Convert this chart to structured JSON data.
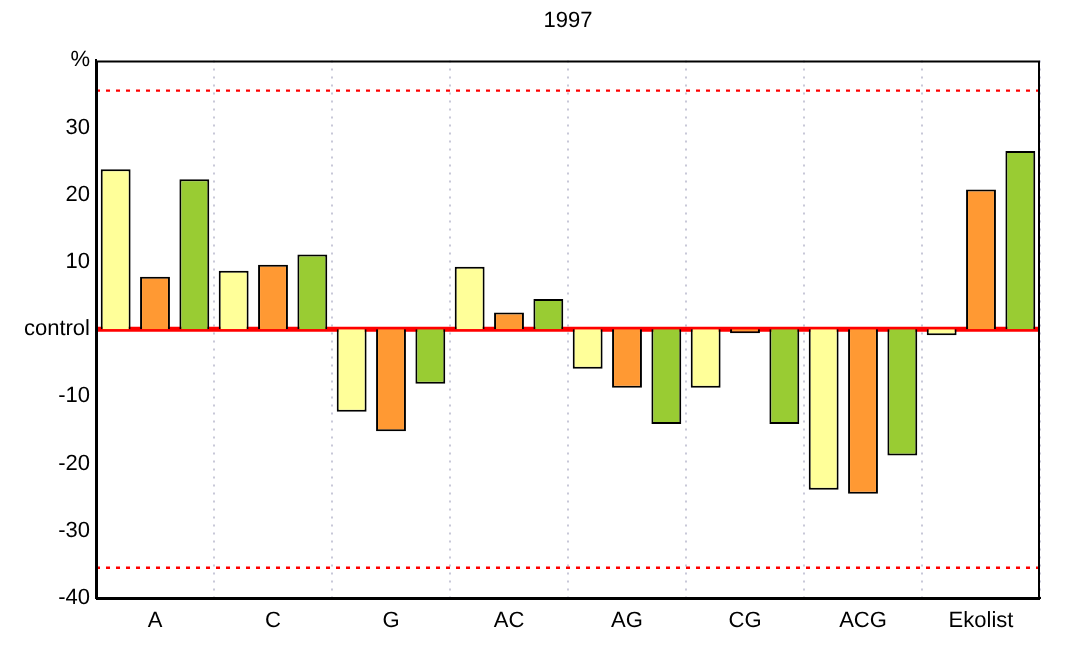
{
  "chart_data": {
    "type": "bar",
    "title": "1997",
    "categories": [
      "A",
      "C",
      "G",
      "AC",
      "AG",
      "CG",
      "ACG",
      "Ekolist"
    ],
    "series": [
      {
        "color": "#ffff99",
        "values": [
          23.8,
          8.7,
          -12.3,
          9.3,
          -5.9,
          -8.7,
          -23.9,
          -0.9
        ]
      },
      {
        "color": "#ff9933",
        "values": [
          7.8,
          9.6,
          -15.2,
          2.5,
          -8.7,
          -0.6,
          -24.5,
          20.8
        ]
      },
      {
        "color": "#99cc33",
        "values": [
          22.3,
          11.1,
          -8.1,
          4.5,
          -14.1,
          -14.1,
          -18.8,
          26.5
        ]
      }
    ],
    "ylim": [
      -40,
      40
    ],
    "yticks": [
      {
        "value": 40,
        "label": "%"
      },
      30,
      20,
      10,
      {
        "value": 0,
        "label": "control"
      },
      -10,
      -20,
      -30,
      -40
    ],
    "ref_lines": [
      {
        "axis": "y",
        "value": 0,
        "color": "#ff0000",
        "line_style": "solid"
      },
      {
        "axis": "y",
        "value": 35.5,
        "color": "#ff0000",
        "line_style": "dotted"
      },
      {
        "axis": "y",
        "value": -35.5,
        "color": "#ff0000",
        "line_style": "dotted"
      }
    ],
    "grid": "x",
    "legend": false
  }
}
